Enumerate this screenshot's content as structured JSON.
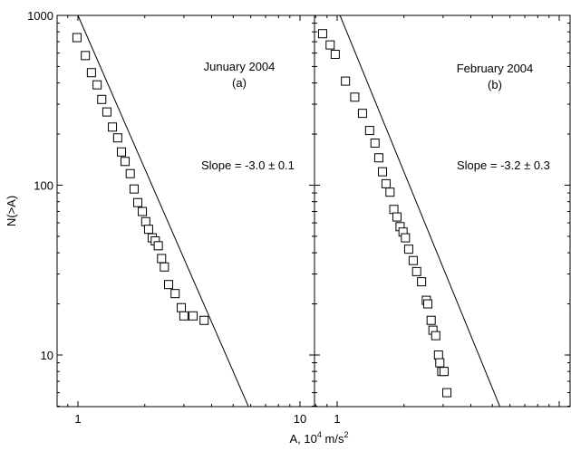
{
  "chart_data": [
    {
      "type": "scatter",
      "panel": "a",
      "annotation_title": "Junuary 2004",
      "annotation_label": "(a)",
      "annotation_slope": "Slope = -3.0 ± 0.1",
      "xscale": "log",
      "yscale": "log",
      "xlim": [
        0.85,
        11
      ],
      "ylim": [
        5,
        1000
      ],
      "xticks": [
        1,
        10
      ],
      "xtick_labels": [
        "1",
        "10"
      ],
      "yticks": [
        10,
        100,
        1000
      ],
      "ytick_labels": [
        "10",
        "100",
        "1000"
      ],
      "ylabel": "N(>A)",
      "points": [
        [
          0.99,
          740
        ],
        [
          1.08,
          580
        ],
        [
          1.15,
          460
        ],
        [
          1.22,
          390
        ],
        [
          1.28,
          320
        ],
        [
          1.35,
          270
        ],
        [
          1.43,
          220
        ],
        [
          1.51,
          190
        ],
        [
          1.57,
          157
        ],
        [
          1.63,
          138
        ],
        [
          1.72,
          117
        ],
        [
          1.79,
          95
        ],
        [
          1.86,
          79
        ],
        [
          1.95,
          70
        ],
        [
          2.02,
          61
        ],
        [
          2.08,
          55
        ],
        [
          2.16,
          49
        ],
        [
          2.23,
          47
        ],
        [
          2.3,
          44
        ],
        [
          2.38,
          37
        ],
        [
          2.45,
          33
        ],
        [
          2.56,
          26
        ],
        [
          2.74,
          23
        ],
        [
          2.92,
          19
        ],
        [
          3.0,
          17
        ],
        [
          3.3,
          17
        ],
        [
          3.7,
          16
        ]
      ],
      "fit": {
        "slope": -3.0,
        "through": [
          1.0,
          1000
        ]
      }
    },
    {
      "type": "scatter",
      "panel": "b",
      "annotation_title": "February 2004",
      "annotation_label": "(b)",
      "annotation_slope": "Slope = -3.2 ± 0.3",
      "xscale": "log",
      "yscale": "log",
      "xlim": [
        0.85,
        11
      ],
      "ylim": [
        5,
        1000
      ],
      "xticks": [
        1,
        10
      ],
      "xtick_labels": [
        "1"
      ],
      "yticks": [
        10,
        100,
        1000
      ],
      "points": [
        [
          0.86,
          780
        ],
        [
          0.93,
          670
        ],
        [
          0.98,
          590
        ],
        [
          1.09,
          410
        ],
        [
          1.2,
          330
        ],
        [
          1.3,
          265
        ],
        [
          1.4,
          210
        ],
        [
          1.48,
          177
        ],
        [
          1.54,
          145
        ],
        [
          1.6,
          120
        ],
        [
          1.66,
          102
        ],
        [
          1.73,
          91
        ],
        [
          1.8,
          72
        ],
        [
          1.86,
          65
        ],
        [
          1.92,
          57
        ],
        [
          1.98,
          53
        ],
        [
          2.03,
          49
        ],
        [
          2.1,
          42
        ],
        [
          2.2,
          36
        ],
        [
          2.28,
          31
        ],
        [
          2.4,
          27
        ],
        [
          2.52,
          21
        ],
        [
          2.56,
          20
        ],
        [
          2.65,
          16
        ],
        [
          2.7,
          14
        ],
        [
          2.78,
          13
        ],
        [
          2.86,
          10
        ],
        [
          2.9,
          9
        ],
        [
          2.96,
          8
        ],
        [
          3.03,
          8
        ],
        [
          3.12,
          6
        ]
      ],
      "fit": {
        "slope": -3.2,
        "through": [
          1.03,
          1000
        ]
      }
    }
  ],
  "shared": {
    "xlabel_prefix": "A, 10",
    "xlabel_exp": "4",
    "xlabel_unit": " m/s",
    "xlabel_unit_exp": "2"
  }
}
